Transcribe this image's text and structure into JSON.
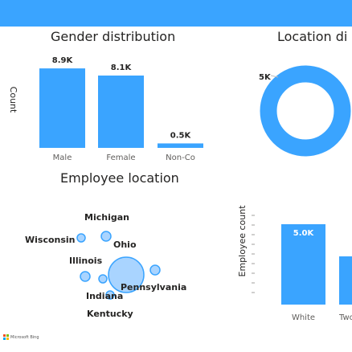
{
  "gender_title": "Gender distribution",
  "location_title_left": "Employee location",
  "location_title_right": "Location di",
  "colors": {
    "accent": "#3aa4ff",
    "bar": "#3aa4ff",
    "donut_hole": "#ffffff"
  },
  "watermark": "Microsoft Bing",
  "chart_data": [
    {
      "type": "bar",
      "ylabel": "Count",
      "categories": [
        "Male",
        "Female",
        "Non-Co"
      ],
      "values": [
        8.9,
        8.1,
        0.5
      ],
      "data_labels": [
        "8.9K",
        "8.1K",
        "0.5K"
      ],
      "ylim": [
        0,
        9
      ]
    },
    {
      "type": "pie",
      "slice_labels": [
        "5K"
      ]
    },
    {
      "type": "scatter",
      "points": [
        {
          "label": "Michigan"
        },
        {
          "label": "Wisconsin"
        },
        {
          "label": "Ohio"
        },
        {
          "label": "Illinois"
        },
        {
          "label": "Indiana"
        },
        {
          "label": "Pennsylvania"
        },
        {
          "label": "Kentucky"
        }
      ]
    },
    {
      "type": "bar",
      "ylabel": "Employee count",
      "categories": [
        "White",
        "Two"
      ],
      "values": [
        5.0,
        3.0
      ],
      "data_labels": [
        "5.0K",
        ""
      ],
      "ylim": [
        0,
        5.5
      ]
    }
  ]
}
